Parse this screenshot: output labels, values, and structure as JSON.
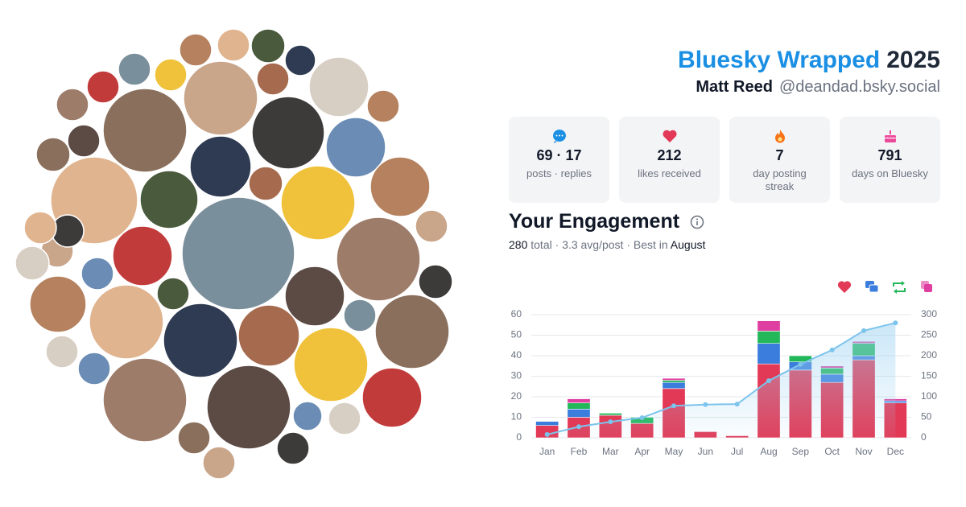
{
  "header": {
    "brand": "Bluesky Wrapped",
    "year": "2025",
    "name": "Matt Reed",
    "handle": "@deandad.bsky.social"
  },
  "stats": [
    {
      "value": "69 · 17",
      "label": "posts · replies"
    },
    {
      "value": 212,
      "label": "likes received"
    },
    {
      "value": 7,
      "label": "day posting streak"
    },
    {
      "value": 791,
      "label": "days on Bluesky"
    }
  ],
  "engagement": {
    "title": "Your Engagement",
    "total": 280,
    "summary": "total · 3.3 avg/post · Best in",
    "best": "August"
  },
  "chart_data": {
    "type": "bar",
    "stacked": true,
    "grid": true,
    "categories": [
      "Jan",
      "Feb",
      "Mar",
      "Apr",
      "May",
      "Jun",
      "Jul",
      "Aug",
      "Sep",
      "Oct",
      "Nov",
      "Dec"
    ],
    "series": [
      {
        "color": "#e23a56",
        "values": [
          6,
          10,
          11,
          7,
          24,
          3,
          1,
          36,
          33,
          27,
          38,
          17
        ]
      },
      {
        "color": "#3b7ddd",
        "values": [
          2,
          4,
          0,
          0,
          3,
          0,
          0,
          10,
          4,
          4,
          2,
          1
        ]
      },
      {
        "color": "#22b85a",
        "values": [
          0,
          3,
          1,
          3,
          1,
          0,
          0,
          6,
          3,
          3,
          6,
          0
        ]
      },
      {
        "color": "#de3fa1",
        "values": [
          0,
          2,
          0,
          0,
          1,
          0,
          0,
          5,
          0,
          1,
          1,
          1
        ]
      },
      {
        "type": "line",
        "axis": "y2",
        "color": "#7cc4ec",
        "values": [
          8,
          27,
          39,
          49,
          78,
          81,
          82,
          139,
          179,
          214,
          261,
          280
        ]
      }
    ],
    "ylim": [
      0,
      60
    ],
    "yticks": [
      0,
      10,
      20,
      30,
      40,
      50,
      60
    ],
    "y2lim": [
      0,
      300
    ],
    "y2ticks": [
      0,
      50,
      100,
      150,
      200,
      250,
      300
    ]
  }
}
